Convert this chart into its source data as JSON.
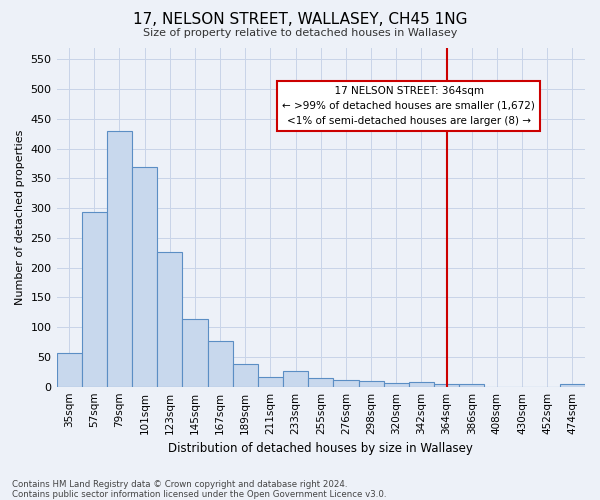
{
  "title": "17, NELSON STREET, WALLASEY, CH45 1NG",
  "subtitle": "Size of property relative to detached houses in Wallasey",
  "xlabel": "Distribution of detached houses by size in Wallasey",
  "ylabel": "Number of detached properties",
  "footer_line1": "Contains HM Land Registry data © Crown copyright and database right 2024.",
  "footer_line2": "Contains public sector information licensed under the Open Government Licence v3.0.",
  "bar_color": "#c8d8ed",
  "bar_edge_color": "#5b8ec4",
  "grid_color": "#c8d4e8",
  "background_color": "#edf1f8",
  "marker_line_color": "#cc0000",
  "annotation_box_edge_color": "#cc0000",
  "annotation_text_line1": "17 NELSON STREET: 364sqm",
  "annotation_text_line2": "← >99% of detached houses are smaller (1,672)",
  "annotation_text_line3": "<1% of semi-detached houses are larger (8) →",
  "categories": [
    "35sqm",
    "57sqm",
    "79sqm",
    "101sqm",
    "123sqm",
    "145sqm",
    "167sqm",
    "189sqm",
    "211sqm",
    "233sqm",
    "255sqm",
    "276sqm",
    "298sqm",
    "320sqm",
    "342sqm",
    "364sqm",
    "386sqm",
    "408sqm",
    "430sqm",
    "452sqm",
    "474sqm"
  ],
  "values": [
    57,
    293,
    430,
    370,
    227,
    113,
    76,
    38,
    17,
    27,
    15,
    11,
    10,
    7,
    8,
    5,
    5,
    0,
    0,
    0,
    5
  ],
  "marker_category": "364sqm",
  "ylim": [
    0,
    570
  ],
  "yticks": [
    0,
    50,
    100,
    150,
    200,
    250,
    300,
    350,
    400,
    450,
    500,
    550
  ]
}
